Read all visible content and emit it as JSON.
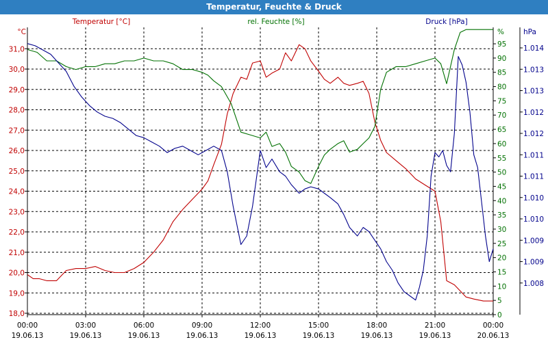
{
  "title": "Temperatur, Feuchte & Druck",
  "colors": {
    "temperature": "#c00000",
    "humidity": "#007000",
    "pressure": "#00008b",
    "titlebar": "#2f7fc1",
    "grid": "#000000"
  },
  "chart_data": {
    "type": "line",
    "title": "Temperatur, Feuchte & Druck",
    "grid": true,
    "x_ticks": [
      {
        "time": "00:00",
        "date": "19.06.13"
      },
      {
        "time": "03:00",
        "date": "19.06.13"
      },
      {
        "time": "06:00",
        "date": "19.06.13"
      },
      {
        "time": "09:00",
        "date": "19.06.13"
      },
      {
        "time": "12:00",
        "date": "19.06.13"
      },
      {
        "time": "15:00",
        "date": "19.06.13"
      },
      {
        "time": "18:00",
        "date": "19.06.13"
      },
      {
        "time": "21:00",
        "date": "19.06.13"
      },
      {
        "time": "00:00",
        "date": "20.06.13"
      }
    ],
    "x_range_hours": [
      0,
      24
    ],
    "axes": {
      "temperature": {
        "label": "Temperatur [°C]",
        "unit": "°C",
        "range": [
          18.0,
          31.5
        ],
        "ticks": [
          "31,0",
          "30,0",
          "29,0",
          "28,0",
          "27,0",
          "26,0",
          "25,0",
          "24,0",
          "23,0",
          "22,0",
          "21,0",
          "20,0",
          "19,0",
          "18,0"
        ],
        "tick_values": [
          31,
          30,
          29,
          28,
          27,
          26,
          25,
          24,
          23,
          22,
          21,
          20,
          19,
          18
        ]
      },
      "humidity": {
        "label": "rel. Feuchte [%]",
        "unit": "%",
        "range": [
          0,
          100
        ],
        "ticks": [
          "95",
          "90",
          "85",
          "80",
          "75",
          "70",
          "65",
          "60",
          "55",
          "50",
          "45",
          "40",
          "35",
          "30",
          "25",
          "20",
          "15",
          "10",
          "5",
          "0"
        ],
        "tick_values": [
          95,
          90,
          85,
          80,
          75,
          70,
          65,
          60,
          55,
          50,
          45,
          40,
          35,
          30,
          25,
          20,
          15,
          10,
          5,
          0
        ]
      },
      "pressure": {
        "label": "Druck [hPa]",
        "unit": "hPa",
        "range": [
          1007.8,
          1014.4
        ],
        "ticks": [
          "1.014",
          "1.013",
          "1.013",
          "1.012",
          "1.012",
          "1.011",
          "1.011",
          "1.010",
          "1.010",
          "1.009",
          "1.009",
          "1.008"
        ],
        "tick_values": [
          1014.0,
          1013.5,
          1013.0,
          1012.5,
          1012.0,
          1011.5,
          1011.0,
          1010.5,
          1010.0,
          1009.5,
          1009.0,
          1008.5
        ]
      }
    },
    "series": [
      {
        "name": "Temperatur [°C]",
        "axis": "temperature",
        "x": [
          0,
          0.3,
          0.6,
          1,
          1.5,
          2,
          2.5,
          3,
          3.5,
          4,
          4.5,
          5,
          5.5,
          6,
          6.5,
          7,
          7.5,
          8,
          8.5,
          9,
          9.3,
          9.6,
          10,
          10.3,
          10.6,
          11,
          11.3,
          11.6,
          12,
          12.3,
          12.6,
          13,
          13.3,
          13.6,
          14,
          14.3,
          14.6,
          15,
          15.3,
          15.6,
          16,
          16.3,
          16.6,
          17,
          17.3,
          17.6,
          17.9,
          18.2,
          18.5,
          19,
          19.5,
          20,
          20.5,
          21,
          21.3,
          21.6,
          22,
          22.3,
          22.6,
          23,
          23.5,
          24
        ],
        "values": [
          19.9,
          19.7,
          19.7,
          19.6,
          19.6,
          20.1,
          20.2,
          20.2,
          20.3,
          20.1,
          20.0,
          20.0,
          20.2,
          20.5,
          21.0,
          21.6,
          22.5,
          23.1,
          23.6,
          24.1,
          24.5,
          25.3,
          26.3,
          27.8,
          28.8,
          29.6,
          29.5,
          30.3,
          30.4,
          29.6,
          29.8,
          30.0,
          30.8,
          30.4,
          31.2,
          31.0,
          30.4,
          29.9,
          29.5,
          29.3,
          29.6,
          29.3,
          29.2,
          29.3,
          29.4,
          28.8,
          27.4,
          26.5,
          25.9,
          25.5,
          25.1,
          24.6,
          24.3,
          24.0,
          22.5,
          19.6,
          19.4,
          19.1,
          18.8,
          18.7,
          18.6,
          18.6
        ]
      },
      {
        "name": "rel. Feuchte [%]",
        "axis": "humidity",
        "x": [
          0,
          0.5,
          1,
          1.5,
          2,
          2.5,
          3,
          3.5,
          4,
          4.5,
          5,
          5.5,
          6,
          6.5,
          7,
          7.5,
          8,
          8.5,
          9,
          9.3,
          9.6,
          10,
          10.5,
          11,
          11.5,
          12,
          12.3,
          12.6,
          13,
          13.3,
          13.6,
          14,
          14.3,
          14.6,
          15,
          15.3,
          15.6,
          16,
          16.3,
          16.6,
          17,
          17.3,
          17.6,
          17.9,
          18.2,
          18.5,
          19,
          19.5,
          20,
          20.5,
          21,
          21.3,
          21.6,
          22,
          22.3,
          22.6,
          23,
          23.5,
          24
        ],
        "values": [
          93,
          92,
          89,
          89,
          87,
          86,
          87,
          87,
          88,
          88,
          89,
          89,
          90,
          89,
          89,
          88,
          86,
          86,
          85,
          84,
          82,
          80,
          74,
          64,
          63,
          62,
          64,
          59,
          60,
          57,
          52,
          50,
          47,
          46,
          52,
          56,
          58,
          60,
          61,
          57,
          58,
          60,
          62,
          66,
          79,
          85,
          87,
          87,
          88,
          89,
          90,
          88,
          81,
          93,
          99,
          100,
          100,
          100,
          100
        ]
      },
      {
        "name": "Druck [hPa]",
        "axis": "pressure",
        "x": [
          0,
          0.4,
          0.8,
          1.2,
          1.6,
          2,
          2.4,
          2.8,
          3.2,
          3.6,
          4,
          4.4,
          4.8,
          5.2,
          5.6,
          6,
          6.4,
          6.8,
          7.2,
          7.6,
          8,
          8.4,
          8.8,
          9.2,
          9.6,
          10,
          10.3,
          10.6,
          11,
          11.3,
          11.6,
          12,
          12.3,
          12.6,
          13,
          13.3,
          13.6,
          14,
          14.3,
          14.6,
          15,
          15.3,
          15.6,
          16,
          16.3,
          16.6,
          17,
          17.3,
          17.6,
          17.9,
          18.2,
          18.5,
          18.8,
          19.1,
          19.4,
          19.7,
          20,
          20.2,
          20.4,
          20.6,
          20.8,
          21,
          21.2,
          21.4,
          21.6,
          21.8,
          22,
          22.2,
          22.4,
          22.6,
          22.8,
          23,
          23.2,
          23.4,
          23.6,
          23.8,
          24
        ],
        "values": [
          1014.1,
          1014.05,
          1013.95,
          1013.85,
          1013.65,
          1013.45,
          1013.1,
          1012.85,
          1012.65,
          1012.5,
          1012.4,
          1012.35,
          1012.25,
          1012.1,
          1011.95,
          1011.9,
          1011.8,
          1011.7,
          1011.55,
          1011.65,
          1011.7,
          1011.6,
          1011.5,
          1011.6,
          1011.7,
          1011.6,
          1011.1,
          1010.3,
          1009.4,
          1009.6,
          1010.3,
          1011.6,
          1011.2,
          1011.4,
          1011.1,
          1011.0,
          1010.8,
          1010.6,
          1010.7,
          1010.75,
          1010.7,
          1010.6,
          1010.5,
          1010.35,
          1010.1,
          1009.8,
          1009.6,
          1009.8,
          1009.7,
          1009.5,
          1009.3,
          1009.0,
          1008.8,
          1008.5,
          1008.3,
          1008.2,
          1008.1,
          1008.4,
          1008.8,
          1009.6,
          1011.0,
          1011.55,
          1011.45,
          1011.6,
          1011.25,
          1011.1,
          1012.0,
          1013.8,
          1013.6,
          1013.2,
          1012.5,
          1011.5,
          1011.2,
          1010.4,
          1009.6,
          1009.0,
          1009.3
        ]
      }
    ]
  }
}
